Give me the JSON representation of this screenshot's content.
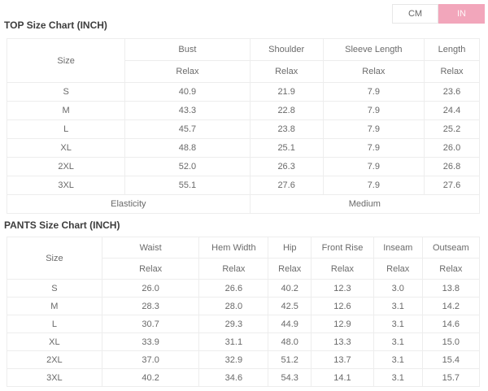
{
  "unit_toggle": {
    "cm_label": "CM",
    "in_label": "IN",
    "active": "IN",
    "active_color": "#f2a6bb"
  },
  "top_chart": {
    "title": "TOP Size Chart (INCH)",
    "size_header": "Size",
    "columns": [
      {
        "label": "Bust",
        "sub": "Relax"
      },
      {
        "label": "Shoulder",
        "sub": "Relax"
      },
      {
        "label": "Sleeve Length",
        "sub": "Relax"
      },
      {
        "label": "Length",
        "sub": "Relax"
      }
    ],
    "rows": [
      {
        "size": "S",
        "values": [
          "40.9",
          "21.9",
          "7.9",
          "23.6"
        ]
      },
      {
        "size": "M",
        "values": [
          "43.3",
          "22.8",
          "7.9",
          "24.4"
        ]
      },
      {
        "size": "L",
        "values": [
          "45.7",
          "23.8",
          "7.9",
          "25.2"
        ]
      },
      {
        "size": "XL",
        "values": [
          "48.8",
          "25.1",
          "7.9",
          "26.0"
        ]
      },
      {
        "size": "2XL",
        "values": [
          "52.0",
          "26.3",
          "7.9",
          "26.8"
        ]
      },
      {
        "size": "3XL",
        "values": [
          "55.1",
          "27.6",
          "7.9",
          "27.6"
        ]
      }
    ],
    "footer": {
      "label": "Elasticity",
      "value": "Medium"
    }
  },
  "pants_chart": {
    "title": "PANTS Size Chart (INCH)",
    "size_header": "Size",
    "columns": [
      {
        "label": "Waist",
        "sub": "Relax"
      },
      {
        "label": "Hem Width",
        "sub": "Relax"
      },
      {
        "label": "Hip",
        "sub": "Relax"
      },
      {
        "label": "Front Rise",
        "sub": "Relax"
      },
      {
        "label": "Inseam",
        "sub": "Relax"
      },
      {
        "label": "Outseam",
        "sub": "Relax"
      }
    ],
    "rows": [
      {
        "size": "S",
        "values": [
          "26.0",
          "26.6",
          "40.2",
          "12.3",
          "3.0",
          "13.8"
        ]
      },
      {
        "size": "M",
        "values": [
          "28.3",
          "28.0",
          "42.5",
          "12.6",
          "3.1",
          "14.2"
        ]
      },
      {
        "size": "L",
        "values": [
          "30.7",
          "29.3",
          "44.9",
          "12.9",
          "3.1",
          "14.6"
        ]
      },
      {
        "size": "XL",
        "values": [
          "33.9",
          "31.1",
          "48.0",
          "13.3",
          "3.1",
          "15.0"
        ]
      },
      {
        "size": "2XL",
        "values": [
          "37.0",
          "32.9",
          "51.2",
          "13.7",
          "3.1",
          "15.4"
        ]
      },
      {
        "size": "3XL",
        "values": [
          "40.2",
          "34.6",
          "54.3",
          "14.1",
          "3.1",
          "15.7"
        ]
      }
    ]
  }
}
